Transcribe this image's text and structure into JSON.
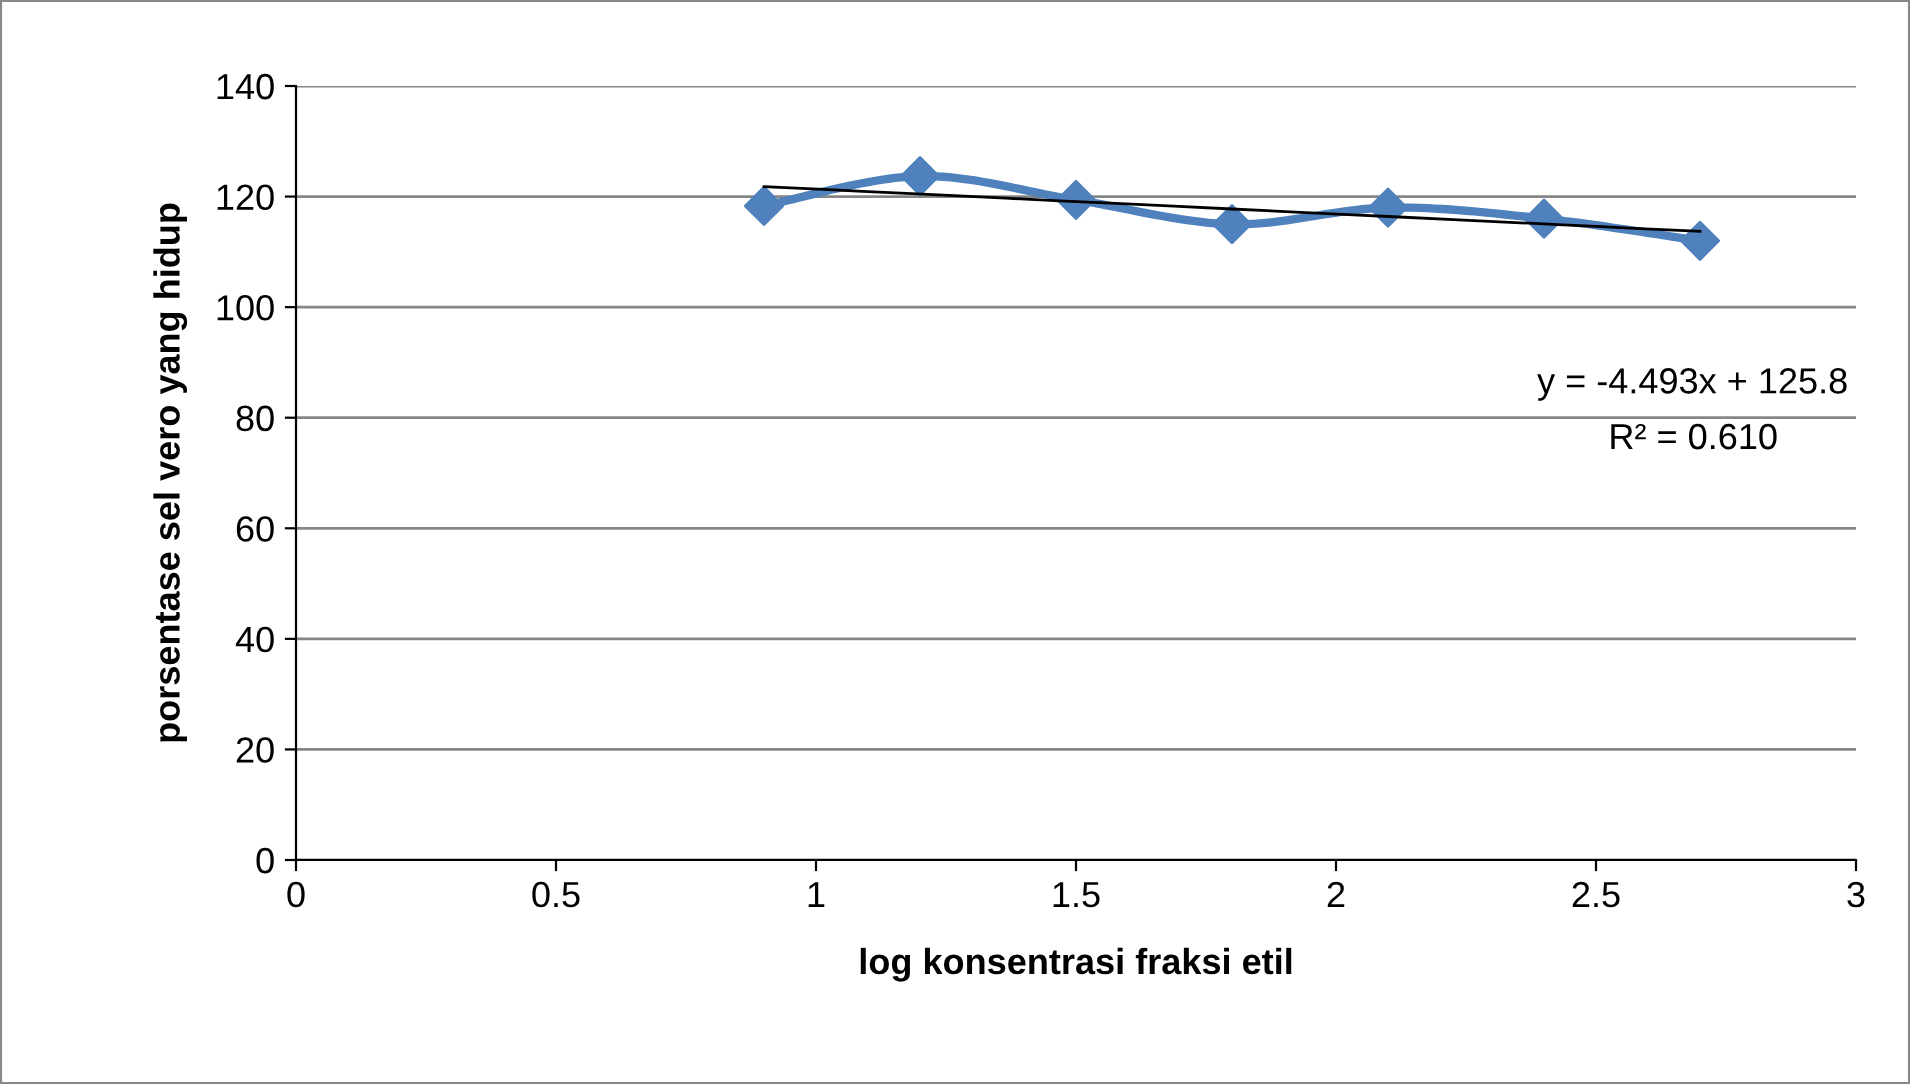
{
  "chart_data": {
    "type": "line",
    "xlabel": "log konsentrasi fraksi etil",
    "ylabel": "porsentase sel vero yang hidup",
    "x": [
      0.9,
      1.2,
      1.5,
      1.8,
      2.1,
      2.4,
      2.7
    ],
    "series": [
      {
        "color": "#4f81bd",
        "marker": "diamond",
        "values": [
          118.3,
          123.7,
          119.4,
          115,
          118,
          116,
          112
        ]
      },
      {
        "color": "#000000",
        "marker": "none",
        "x": [
          0.9,
          2.7
        ],
        "values": [
          121.8,
          113.7
        ]
      }
    ],
    "annotations": [
      "y = -4.493x + 125.8",
      "R² = 0.610"
    ],
    "xlim": [
      0,
      3
    ],
    "xticks": [
      0,
      0.5,
      1,
      1.5,
      2,
      2.5,
      3
    ],
    "ylim": [
      0,
      140
    ],
    "yticks": [
      0,
      20,
      40,
      60,
      80,
      100,
      120,
      140
    ],
    "grid": "y",
    "legend": false
  }
}
